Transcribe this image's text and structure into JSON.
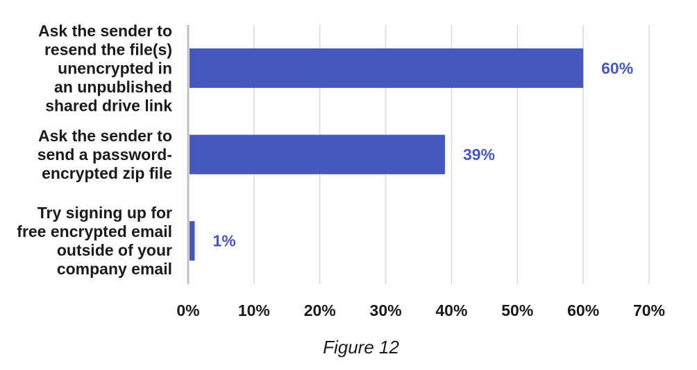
{
  "caption": "Figure 12",
  "colors": {
    "bar": "#4658bd",
    "data_label": "#4658bd",
    "grid": "#d9d9d9",
    "axis": "#bfbfbf"
  },
  "chart_data": {
    "type": "bar",
    "orientation": "horizontal",
    "categories": [
      [
        "Ask the sender to",
        "resend the file(s)",
        "unencrypted in",
        "an unpublished",
        "shared drive link"
      ],
      [
        "Ask the sender to",
        "send a password-",
        "encrypted zip file"
      ],
      [
        "Try signing up for",
        "free encrypted email",
        "outside of your",
        "company email"
      ]
    ],
    "values": [
      60,
      39,
      1
    ],
    "data_labels": [
      "60%",
      "39%",
      "1%"
    ],
    "xlim": [
      0,
      70
    ],
    "xticks": [
      0,
      10,
      20,
      30,
      40,
      50,
      60,
      70
    ],
    "xtick_labels": [
      "0%",
      "10%",
      "20%",
      "30%",
      "40%",
      "50%",
      "60%",
      "70%"
    ],
    "grid": "vertical",
    "legend": "none"
  }
}
